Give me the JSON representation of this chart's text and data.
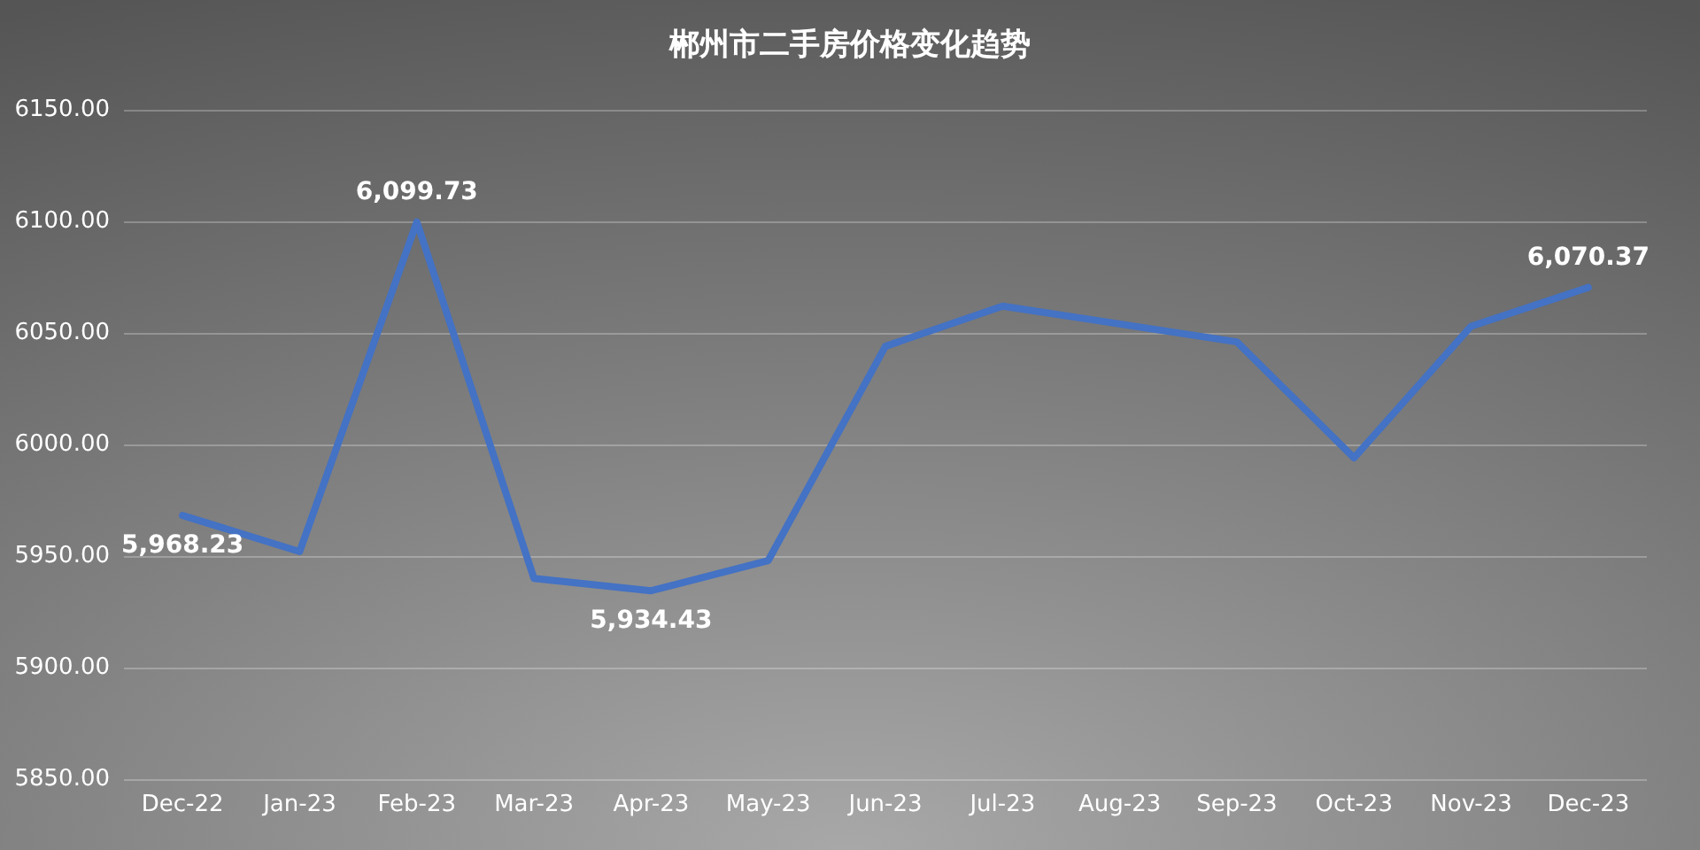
{
  "chart_data": {
    "type": "line",
    "title": "郴州市二手房价格变化趋势",
    "categories": [
      "Dec-22",
      "Jan-23",
      "Feb-23",
      "Mar-23",
      "Apr-23",
      "May-23",
      "Jun-23",
      "Jul-23",
      "Aug-23",
      "Sep-23",
      "Oct-23",
      "Nov-23",
      "Dec-23"
    ],
    "series": [
      {
        "color": "#4472c4",
        "values": [
          5968.23,
          5952,
          6099.73,
          5940,
          5934.43,
          5948,
          6044,
          6062,
          6054,
          6046,
          5994,
          6053,
          6070.37
        ],
        "value_labels": [
          "5,968.23",
          null,
          "6,099.73",
          null,
          "5,934.43",
          null,
          null,
          null,
          null,
          null,
          null,
          null,
          "6,070.37"
        ]
      }
    ],
    "ylim": [
      5850,
      6150
    ],
    "yticks": [
      {
        "value": 5850,
        "label": "5850.00"
      },
      {
        "value": 5900,
        "label": "5900.00"
      },
      {
        "value": 5950,
        "label": "5950.00"
      },
      {
        "value": 6000,
        "label": "6000.00"
      },
      {
        "value": 6050,
        "label": "6050.00"
      },
      {
        "value": 6100,
        "label": "6100.00"
      },
      {
        "value": 6150,
        "label": "6150.00"
      }
    ],
    "grid": "y",
    "marker": "none",
    "line_style": "solid"
  }
}
